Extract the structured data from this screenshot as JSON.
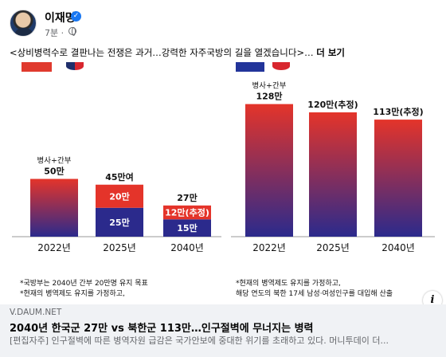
{
  "post": {
    "author": "이재명",
    "time": "7분 · ",
    "text": "<상비병력수로 결판나는 전쟁은 과거…강력한 자주국방의 길을 열겠습니다>…",
    "see_more": "더 보기"
  },
  "chart_data": [
    {
      "type": "bar",
      "categories": [
        "2022년",
        "2025년",
        "2040년"
      ],
      "values": [
        50,
        45,
        27
      ],
      "segments": [
        null,
        [
          {
            "label": "25만",
            "value": 25
          },
          {
            "label": "20만",
            "value": 20
          }
        ],
        [
          {
            "label": "15만",
            "value": 15
          },
          {
            "label": "12만(추정)",
            "value": 12
          }
        ]
      ],
      "bar_labels": [
        {
          "top": "병사+간부",
          "main": "50만"
        },
        {
          "top": "",
          "main": "45만여"
        },
        {
          "top": "",
          "main": "27만"
        }
      ],
      "ylim": [
        0,
        130
      ],
      "colors": {
        "top": "#e4342a",
        "bottom": "#2b2a8c"
      },
      "footnotes": [
        "*국방부는 2040년 간부 20만명 유지 목표",
        "*현재의 병역제도 유지를 가정하고,"
      ]
    },
    {
      "type": "bar",
      "categories": [
        "2022년",
        "2025년",
        "2040년"
      ],
      "values": [
        128,
        120,
        113
      ],
      "bar_labels": [
        {
          "top": "병사+간부",
          "main": "128만"
        },
        {
          "top": "",
          "main": "120만(추정)"
        },
        {
          "top": "",
          "main": "113만(추정)"
        }
      ],
      "ylim": [
        0,
        130
      ],
      "colors": {
        "top": "#e4342a",
        "bottom": "#2b2a8c"
      },
      "footnotes": [
        "*현재의 병역제도 유지를 가정하고,",
        "해당 연도의 북한 17세 남성·여성인구를 대입해 산출"
      ]
    }
  ],
  "link": {
    "domain": "V.DAUM.NET",
    "title": "2040년 한국군 27만 vs 북한군 113만…인구절벽에 무너지는 병력",
    "description": "[편집자주] 인구절벽에 따른 병역자원 급감은 국가안보에 중대한 위기를 초래하고 있다. 머니투데이 더..."
  }
}
